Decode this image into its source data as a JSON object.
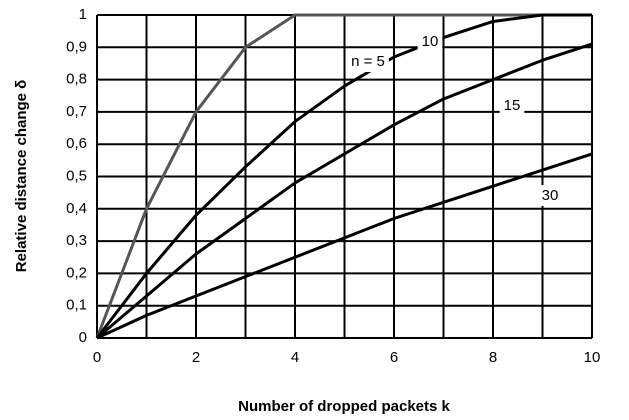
{
  "chart_data": {
    "type": "line",
    "xlabel": "Number of dropped  packets  k",
    "ylabel": "Relative distance change δ",
    "x": [
      0,
      1,
      2,
      3,
      4,
      5,
      6,
      7,
      8,
      9,
      10
    ],
    "series": [
      {
        "name": "n = 5",
        "color": "#555555",
        "values": [
          0,
          0.4,
          0.7,
          0.9,
          1,
          1,
          1,
          1,
          1,
          1,
          1
        ]
      },
      {
        "name": "10",
        "color": "#000000",
        "values": [
          0,
          0.2,
          0.38,
          0.53,
          0.67,
          0.78,
          0.87,
          0.93,
          0.98,
          1,
          1
        ]
      },
      {
        "name": "15",
        "color": "#000000",
        "values": [
          0,
          0.13,
          0.26,
          0.37,
          0.48,
          0.57,
          0.66,
          0.74,
          0.8,
          0.86,
          0.91
        ]
      },
      {
        "name": "30",
        "color": "#000000",
        "values": [
          0,
          0.07,
          0.13,
          0.19,
          0.25,
          0.31,
          0.37,
          0.42,
          0.47,
          0.52,
          0.57
        ]
      }
    ],
    "xlim": [
      0,
      10
    ],
    "xticks": [
      0,
      2,
      4,
      6,
      8,
      10
    ],
    "xminor": [
      1,
      3,
      5,
      7,
      9
    ],
    "ylim": [
      0,
      1
    ],
    "yticks": [
      0,
      {
        "value": 0.1,
        "label": "0,1"
      },
      {
        "value": 0.2,
        "label": "0,2"
      },
      {
        "value": 0.3,
        "label": "0,3"
      },
      {
        "value": 0.4,
        "label": "0,4"
      },
      {
        "value": 0.5,
        "label": "0,5"
      },
      {
        "value": 0.6,
        "label": "0,6"
      },
      {
        "value": 0.7,
        "label": "0,7"
      },
      {
        "value": 0.8,
        "label": "0,8"
      },
      {
        "value": 0.9,
        "label": "0,9"
      },
      1
    ],
    "grid": true
  }
}
